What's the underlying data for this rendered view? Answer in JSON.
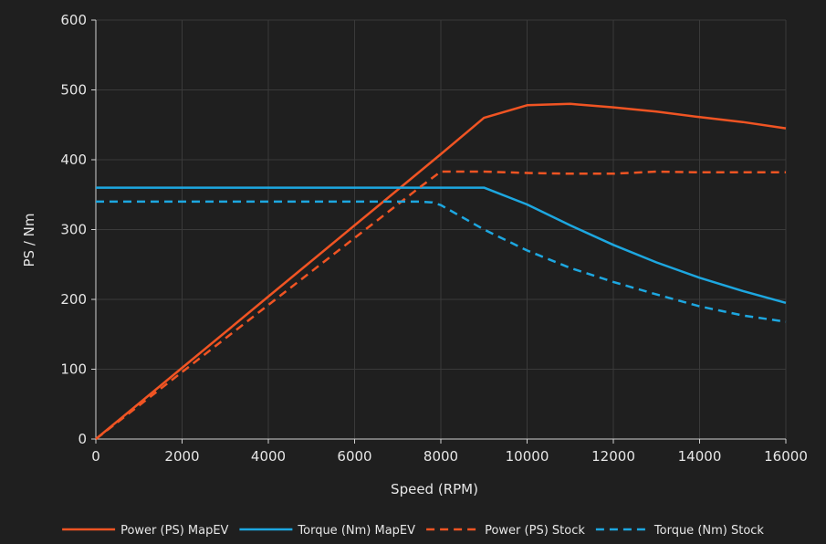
{
  "chart_data": {
    "type": "line",
    "xlabel": "Speed (RPM)",
    "ylabel": "PS / Nm",
    "xlim": [
      0,
      16000
    ],
    "ylim": [
      0,
      600
    ],
    "xticks": [
      0,
      2000,
      4000,
      6000,
      8000,
      10000,
      12000,
      14000,
      16000
    ],
    "yticks": [
      0,
      100,
      200,
      300,
      400,
      500,
      600
    ],
    "grid": true,
    "legend_position": "bottom",
    "series": [
      {
        "name": "Power (PS) MapEV",
        "color": "#f05423",
        "dash": "solid",
        "x": [
          0,
          1000,
          2000,
          3000,
          4000,
          5000,
          6000,
          7000,
          8000,
          9000,
          10000,
          11000,
          12000,
          13000,
          14000,
          15000,
          16000
        ],
        "y": [
          0,
          51,
          102,
          153,
          204,
          255,
          306,
          357,
          408,
          460,
          478,
          480,
          475,
          469,
          461,
          454,
          445
        ]
      },
      {
        "name": "Torque (Nm) MapEV",
        "color": "#1da7e0",
        "dash": "solid",
        "x": [
          0,
          1000,
          2000,
          3000,
          4000,
          5000,
          6000,
          7000,
          8000,
          9000,
          10000,
          11000,
          12000,
          13000,
          14000,
          15000,
          16000
        ],
        "y": [
          360,
          360,
          360,
          360,
          360,
          360,
          360,
          360,
          360,
          360,
          336,
          306,
          278,
          253,
          231,
          212,
          195
        ]
      },
      {
        "name": "Power (PS) Stock",
        "color": "#f05423",
        "dash": "dashed",
        "x": [
          0,
          1000,
          2000,
          3000,
          4000,
          5000,
          6000,
          7000,
          7500,
          8000,
          9000,
          10000,
          11000,
          12000,
          13000,
          14000,
          15000,
          16000
        ],
        "y": [
          0,
          48,
          96,
          144,
          192,
          240,
          288,
          336,
          360,
          383,
          383,
          381,
          380,
          380,
          383,
          382,
          382,
          382
        ]
      },
      {
        "name": "Torque (Nm) Stock",
        "color": "#1da7e0",
        "dash": "dashed",
        "x": [
          0,
          1000,
          2000,
          3000,
          4000,
          5000,
          6000,
          7000,
          7500,
          7800,
          8000,
          9000,
          10000,
          11000,
          12000,
          13000,
          14000,
          15000,
          16000
        ],
        "y": [
          340,
          340,
          340,
          340,
          340,
          340,
          340,
          340,
          340,
          339,
          335,
          300,
          270,
          245,
          225,
          207,
          190,
          177,
          168
        ]
      }
    ]
  }
}
